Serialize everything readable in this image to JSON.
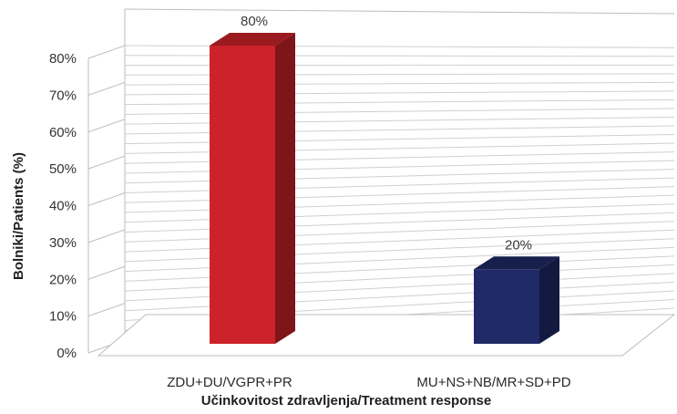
{
  "chart_data": {
    "type": "bar",
    "title": "",
    "xlabel": "Učinkovitost zdravljenja/Treatment response",
    "ylabel": "Bolniki/Patients (%)",
    "categories": [
      "ZDU+DU/VGPR+PR",
      "MU+NS+NB/MR+SD+PD"
    ],
    "values": [
      80,
      20
    ],
    "data_labels": [
      "80%",
      "20%"
    ],
    "colors": [
      "#cc2229",
      "#1f2a66"
    ],
    "ylim": [
      0,
      80
    ],
    "yticks": [
      0,
      10,
      20,
      30,
      40,
      50,
      60,
      70,
      80
    ],
    "ytick_labels": [
      "0%",
      "10%",
      "20%",
      "30%",
      "40%",
      "50%",
      "60%",
      "70%",
      "80%"
    ],
    "grid": true,
    "style": "3d-column",
    "legend": "none"
  }
}
